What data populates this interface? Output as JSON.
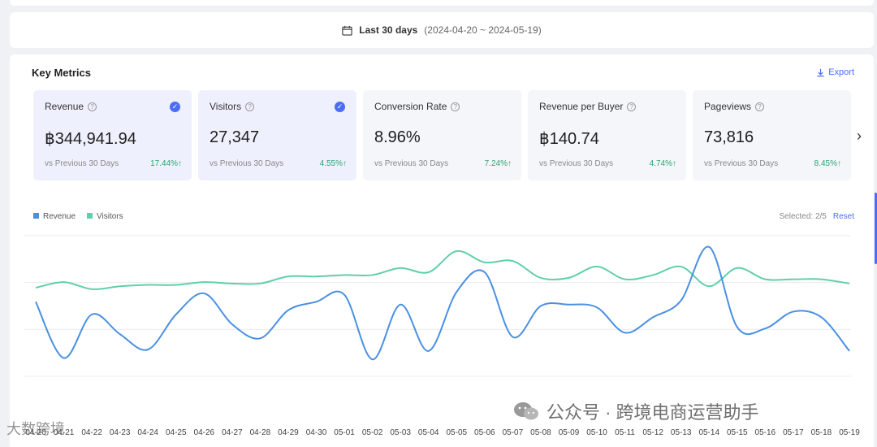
{
  "date_bar": {
    "label": "Last 30 days",
    "range": "(2024-04-20 ~ 2024-05-19)"
  },
  "panel": {
    "title": "Key Metrics",
    "export_label": "Export"
  },
  "metrics": [
    {
      "name": "Revenue",
      "value": "฿344,941.94",
      "compare": "vs Previous 30 Days",
      "change": "17.44%↑",
      "selected": true
    },
    {
      "name": "Visitors",
      "value": "27,347",
      "compare": "vs Previous 30 Days",
      "change": "4.55%↑",
      "selected": true
    },
    {
      "name": "Conversion Rate",
      "value": "8.96%",
      "compare": "vs Previous 30 Days",
      "change": "7.24%↑",
      "selected": false
    },
    {
      "name": "Revenue per Buyer",
      "value": "฿140.74",
      "compare": "vs Previous 30 Days",
      "change": "4.74%↑",
      "selected": false
    },
    {
      "name": "Pageviews",
      "value": "73,816",
      "compare": "vs Previous 30 Days",
      "change": "8.45%↑",
      "selected": false
    }
  ],
  "selection": {
    "label": "Selected:",
    "count": "2/5",
    "reset_label": "Reset"
  },
  "colors": {
    "accent": "#4a6cf7",
    "revenue": "#4a90e2",
    "visitors": "#5fd0a8",
    "positive": "#2ba471"
  },
  "watermark": {
    "text": "公众号 · 跨境电商运营助手",
    "secondary": "大数跨境"
  },
  "chart_data": {
    "type": "line",
    "x": [
      "04-20",
      "04-21",
      "04-22",
      "04-23",
      "04-24",
      "04-25",
      "04-26",
      "04-27",
      "04-28",
      "04-29",
      "04-30",
      "05-01",
      "05-02",
      "05-03",
      "05-04",
      "05-05",
      "05-06",
      "05-07",
      "05-08",
      "05-09",
      "05-10",
      "05-11",
      "05-12",
      "05-13",
      "05-14",
      "05-15",
      "05-16",
      "05-17",
      "05-18",
      "05-19"
    ],
    "x_labels_shown": [
      "04-20",
      "04-21",
      "04-22",
      "04-23",
      "04-24",
      "04-25",
      "04-26",
      "04-27",
      "04-28",
      "04-29",
      "04-30",
      "05-01",
      "05-02",
      "05-03",
      "05-04",
      "05-05",
      "05-06",
      "05-07",
      "05-08",
      "05-09",
      "05-10",
      "05-11",
      "05-12",
      "05-13",
      "05-14",
      "05-15",
      "05-16",
      "05-17",
      "05-18",
      "05-19"
    ],
    "ylim": [
      0,
      1
    ],
    "grid": true,
    "legend": "top-left",
    "series": [
      {
        "name": "Revenue",
        "color": "#4a90e2",
        "values": [
          0.53,
          0.13,
          0.44,
          0.3,
          0.19,
          0.44,
          0.59,
          0.37,
          0.27,
          0.47,
          0.53,
          0.58,
          0.12,
          0.51,
          0.18,
          0.6,
          0.74,
          0.28,
          0.5,
          0.51,
          0.49,
          0.31,
          0.42,
          0.54,
          0.92,
          0.35,
          0.34,
          0.46,
          0.42,
          0.18
        ]
      },
      {
        "name": "Visitors",
        "color": "#5fd0a8",
        "values": [
          0.63,
          0.67,
          0.62,
          0.64,
          0.65,
          0.65,
          0.67,
          0.66,
          0.66,
          0.71,
          0.71,
          0.72,
          0.72,
          0.77,
          0.74,
          0.89,
          0.81,
          0.82,
          0.7,
          0.7,
          0.78,
          0.69,
          0.72,
          0.78,
          0.64,
          0.77,
          0.69,
          0.69,
          0.69,
          0.66
        ]
      }
    ]
  }
}
